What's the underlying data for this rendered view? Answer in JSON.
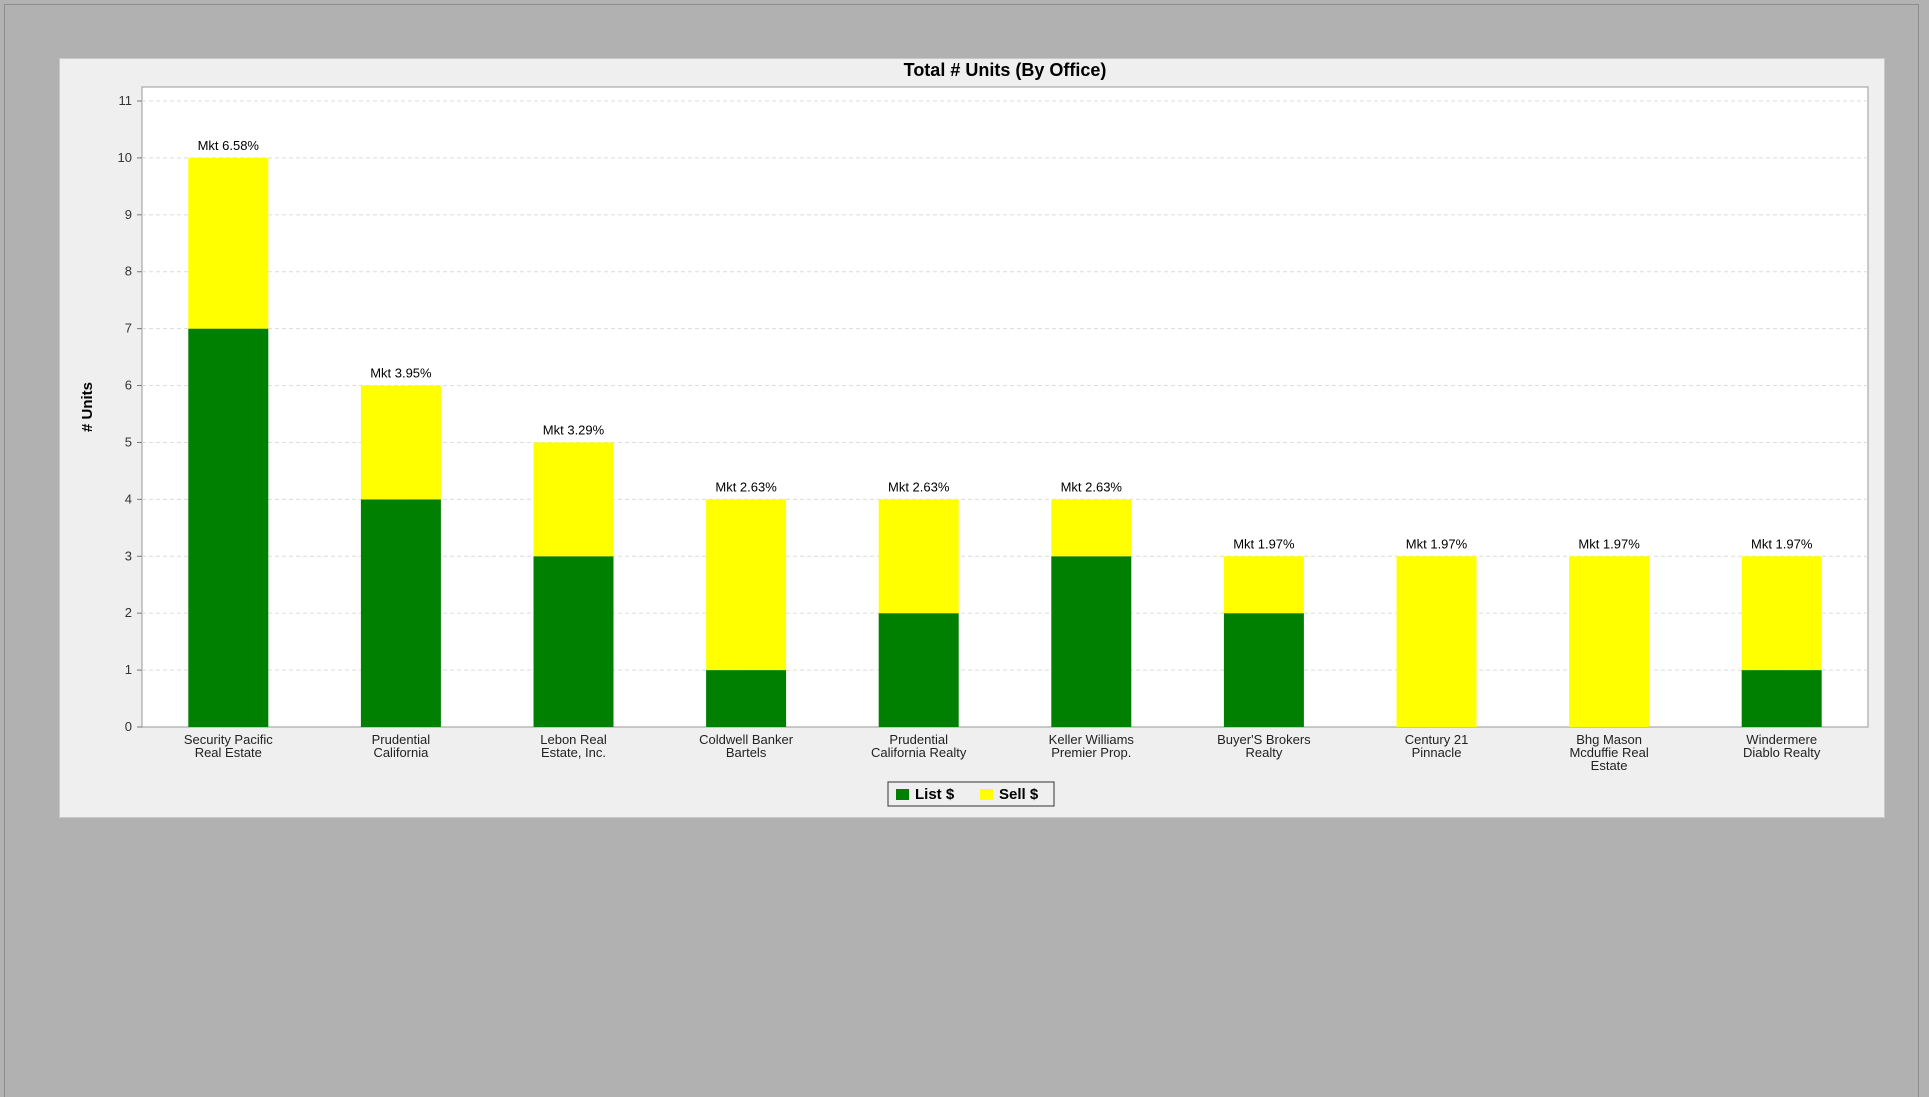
{
  "chart_data": {
    "type": "bar",
    "stacked": true,
    "title": "Total # Units (By Office)",
    "xlabel": "",
    "ylabel": "# Units",
    "ylim": [
      0,
      11
    ],
    "yticks": [
      0,
      1,
      2,
      3,
      4,
      5,
      6,
      7,
      8,
      9,
      10,
      11
    ],
    "grid": true,
    "legend_position": "bottom",
    "categories": [
      [
        "Security Pacific",
        "Real Estate"
      ],
      [
        "Prudential",
        "California"
      ],
      [
        "Lebon Real",
        "Estate, Inc."
      ],
      [
        "Coldwell Banker",
        "Bartels"
      ],
      [
        "Prudential",
        "California Realty"
      ],
      [
        "Keller Williams",
        "Premier Prop."
      ],
      [
        "Buyer'S Brokers",
        "Realty"
      ],
      [
        "Century 21",
        "Pinnacle"
      ],
      [
        "Bhg Mason",
        "Mcduffie Real",
        "Estate"
      ],
      [
        "Windermere",
        "Diablo Realty"
      ]
    ],
    "series": [
      {
        "name": "List $",
        "color": "#008000",
        "values": [
          7,
          4,
          3,
          1,
          2,
          3,
          2,
          0,
          0,
          1
        ]
      },
      {
        "name": "Sell $",
        "color": "#ffff00",
        "values": [
          3,
          2,
          2,
          3,
          2,
          1,
          1,
          3,
          3,
          2
        ]
      }
    ],
    "bar_labels": [
      "Mkt 6.58%",
      "Mkt 3.95%",
      "Mkt 3.29%",
      "Mkt 2.63%",
      "Mkt 2.63%",
      "Mkt 2.63%",
      "Mkt 1.97%",
      "Mkt 1.97%",
      "Mkt 1.97%",
      "Mkt 1.97%"
    ]
  }
}
